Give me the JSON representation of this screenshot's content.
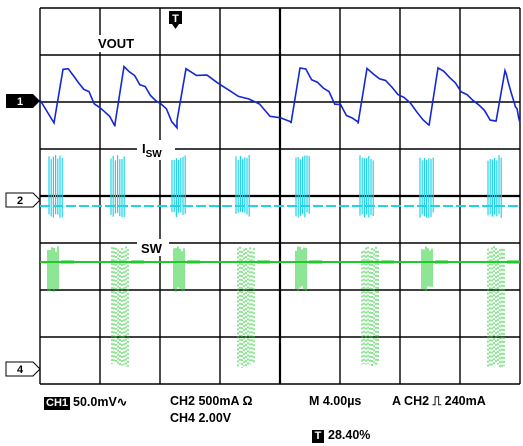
{
  "trigger_marker": "T",
  "traces": {
    "vout": {
      "label": "VOUT",
      "color": "#1428d2",
      "marker": "1"
    },
    "isw": {
      "label_main": "I",
      "label_sub": "SW",
      "color": "#22d3e8",
      "marker": "2"
    },
    "sw": {
      "label": "SW",
      "color": "#1ecb2a",
      "marker": "4"
    }
  },
  "readouts": {
    "ch1_tag": "CH1",
    "ch1_scale": "50.0mV",
    "ch1_coupling_symbol": "∿",
    "ch2": "CH2 500mA Ω",
    "ch4": "CH4 2.00V",
    "timebase": "M 4.00µs",
    "trigger": "A CH2",
    "trigger_slope_symbol": "⎍",
    "trigger_level": "240mA",
    "trigger_position_tag": "T",
    "trigger_position": "28.40%"
  }
}
